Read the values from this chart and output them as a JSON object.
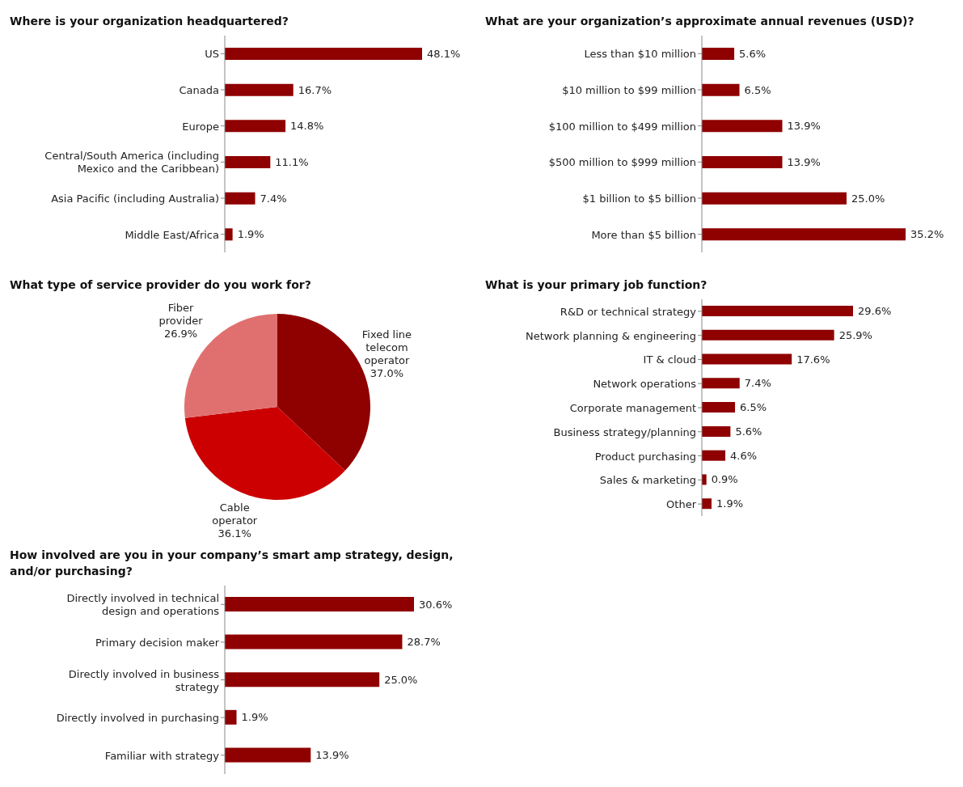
{
  "chart_data": [
    {
      "type": "bar",
      "orientation": "horizontal",
      "title": "Where is your organization headquartered?",
      "categories": [
        "US",
        "Canada",
        "Europe",
        "Central/South America (including Mexico and the Caribbean)",
        "Asia Pacific (including Australia)",
        "Middle East/Africa"
      ],
      "values": [
        48.1,
        16.7,
        14.8,
        11.1,
        7.4,
        1.9
      ],
      "value_labels": [
        "48.1%",
        "16.7%",
        "14.8%",
        "11.1%",
        "7.4%",
        "1.9%"
      ],
      "color": "#8f0000",
      "legend": false,
      "grid": false
    },
    {
      "type": "bar",
      "orientation": "horizontal",
      "title": "What are your organization’s approximate annual revenues (USD)?",
      "categories": [
        "Less than $10 million",
        "$10 million to $99 million",
        "$100 million to $499 million",
        "$500 million to $999 million",
        "$1 billion to $5 billion",
        "More than $5 billion"
      ],
      "values": [
        5.6,
        6.5,
        13.9,
        13.9,
        25.0,
        35.2
      ],
      "value_labels": [
        "5.6%",
        "6.5%",
        "13.9%",
        "13.9%",
        "25.0%",
        "35.2%"
      ],
      "color": "#8f0000",
      "legend": false,
      "grid": false
    },
    {
      "type": "pie",
      "title": "What type of service provider do you work for?",
      "categories": [
        "Fixed line telecom operator",
        "Cable operator",
        "Fiber provider"
      ],
      "values": [
        37.0,
        36.1,
        26.9
      ],
      "value_labels": [
        "37.0%",
        "36.1%",
        "26.9%"
      ],
      "colors": [
        "#8f0000",
        "#cc0000",
        "#e07070"
      ],
      "legend": false
    },
    {
      "type": "bar",
      "orientation": "horizontal",
      "title": "What is your primary job function?",
      "categories": [
        "R&D or technical strategy",
        "Network planning & engineering",
        "IT & cloud",
        "Network operations",
        "Corporate management",
        "Business strategy/planning",
        "Product purchasing",
        "Sales & marketing",
        "Other"
      ],
      "values": [
        29.6,
        25.9,
        17.6,
        7.4,
        6.5,
        5.6,
        4.6,
        0.9,
        1.9
      ],
      "value_labels": [
        "29.6%",
        "25.9%",
        "17.6%",
        "7.4%",
        "6.5%",
        "5.6%",
        "4.6%",
        "0.9%",
        "1.9%"
      ],
      "color": "#8f0000",
      "legend": false,
      "grid": false
    },
    {
      "type": "bar",
      "orientation": "horizontal",
      "title": "How involved are you in your company’s smart amp strategy, design, and/or purchasing?",
      "categories": [
        "Directly involved in technical design and operations",
        "Primary decision maker",
        "Directly involved in business strategy",
        "Directly involved in purchasing",
        "Familiar with strategy"
      ],
      "values": [
        30.6,
        28.7,
        25.0,
        1.9,
        13.9
      ],
      "value_labels": [
        "30.6%",
        "28.7%",
        "25.0%",
        "1.9%",
        "13.9%"
      ],
      "color": "#8f0000",
      "legend": false,
      "grid": false
    }
  ]
}
